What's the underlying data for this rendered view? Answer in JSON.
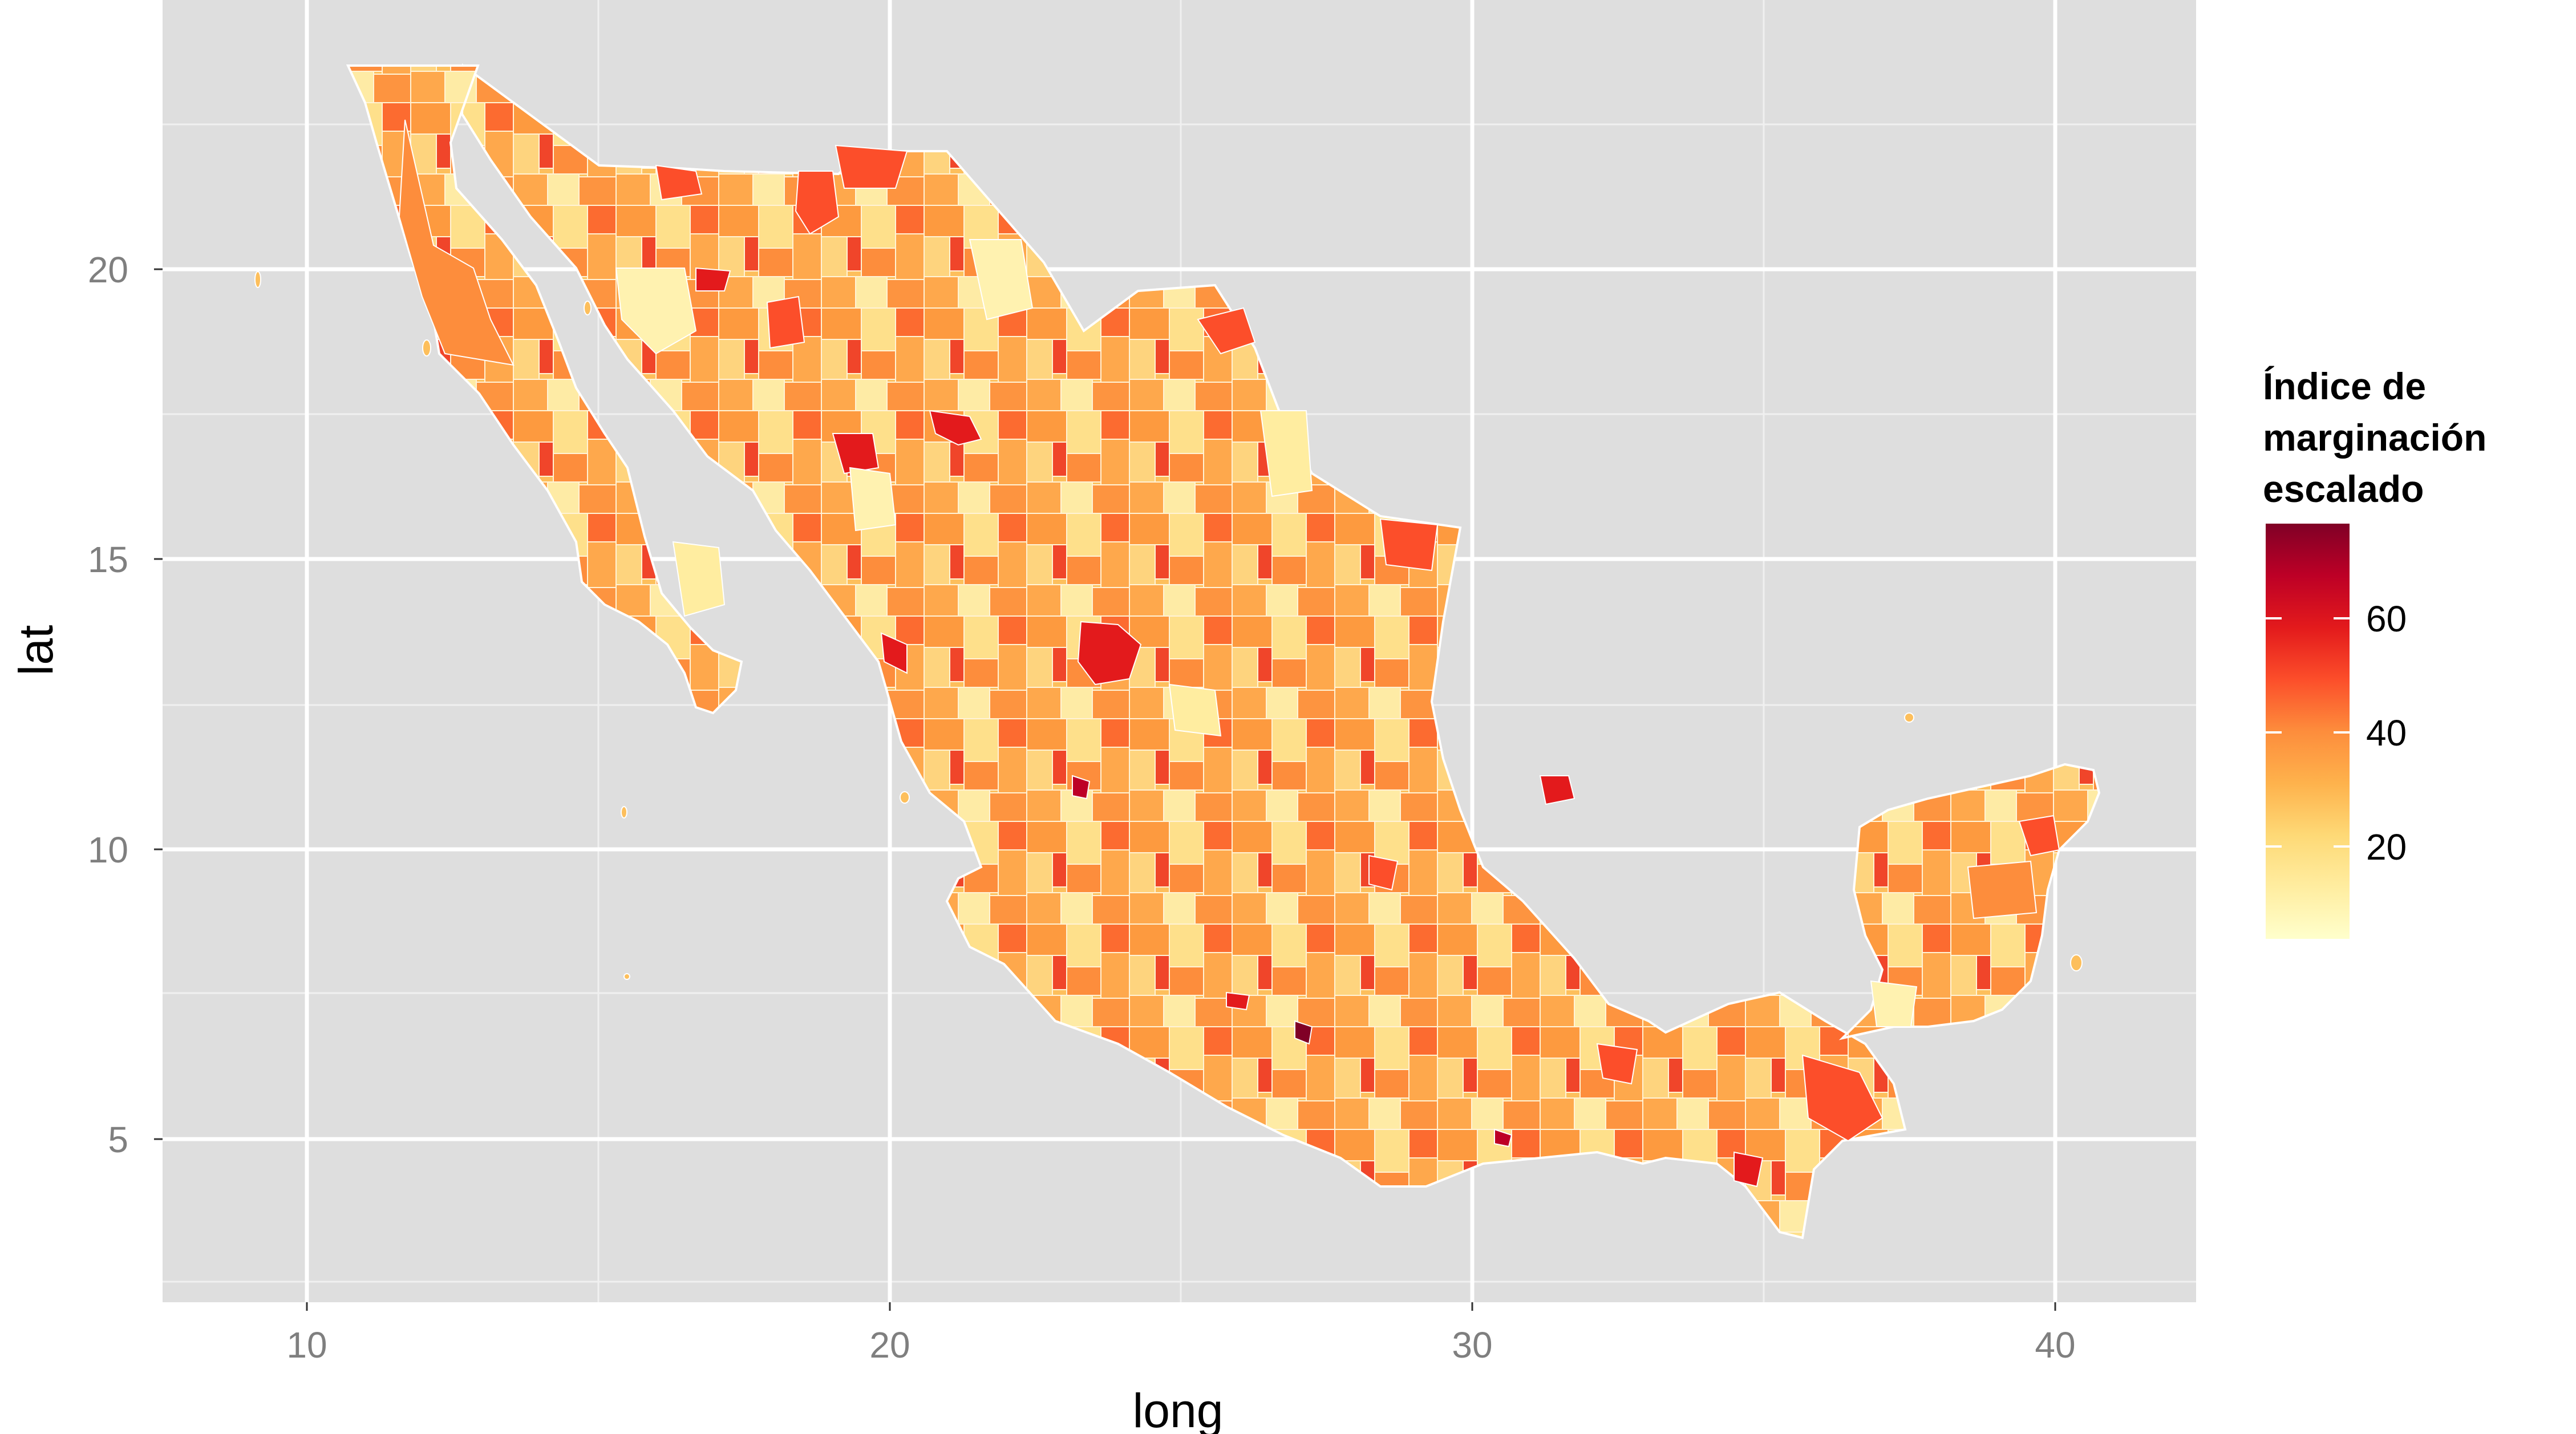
{
  "chart_data": {
    "type": "choropleth",
    "xlabel": "long",
    "ylabel": "lat",
    "xlim": [
      7.5,
      42.3
    ],
    "ylim": [
      2.2,
      24.5
    ],
    "x_ticks": [
      10,
      20,
      30,
      40
    ],
    "y_ticks": [
      5,
      10,
      15,
      20
    ],
    "grid": true,
    "panel_background": "#dedede",
    "grid_color": "#ffffff",
    "border_color": "#ffffff",
    "legend": {
      "title_lines": [
        "Índice de",
        "marginación",
        "escalado"
      ],
      "ticks": [
        20,
        40,
        60
      ],
      "min": 2,
      "max": 78,
      "placement": "right",
      "colors": [
        "#ffffcc",
        "#ffeda0",
        "#fed976",
        "#feb24c",
        "#fd8d3c",
        "#fc4e2a",
        "#e31a1c",
        "#bd0026",
        "#800026"
      ]
    }
  }
}
